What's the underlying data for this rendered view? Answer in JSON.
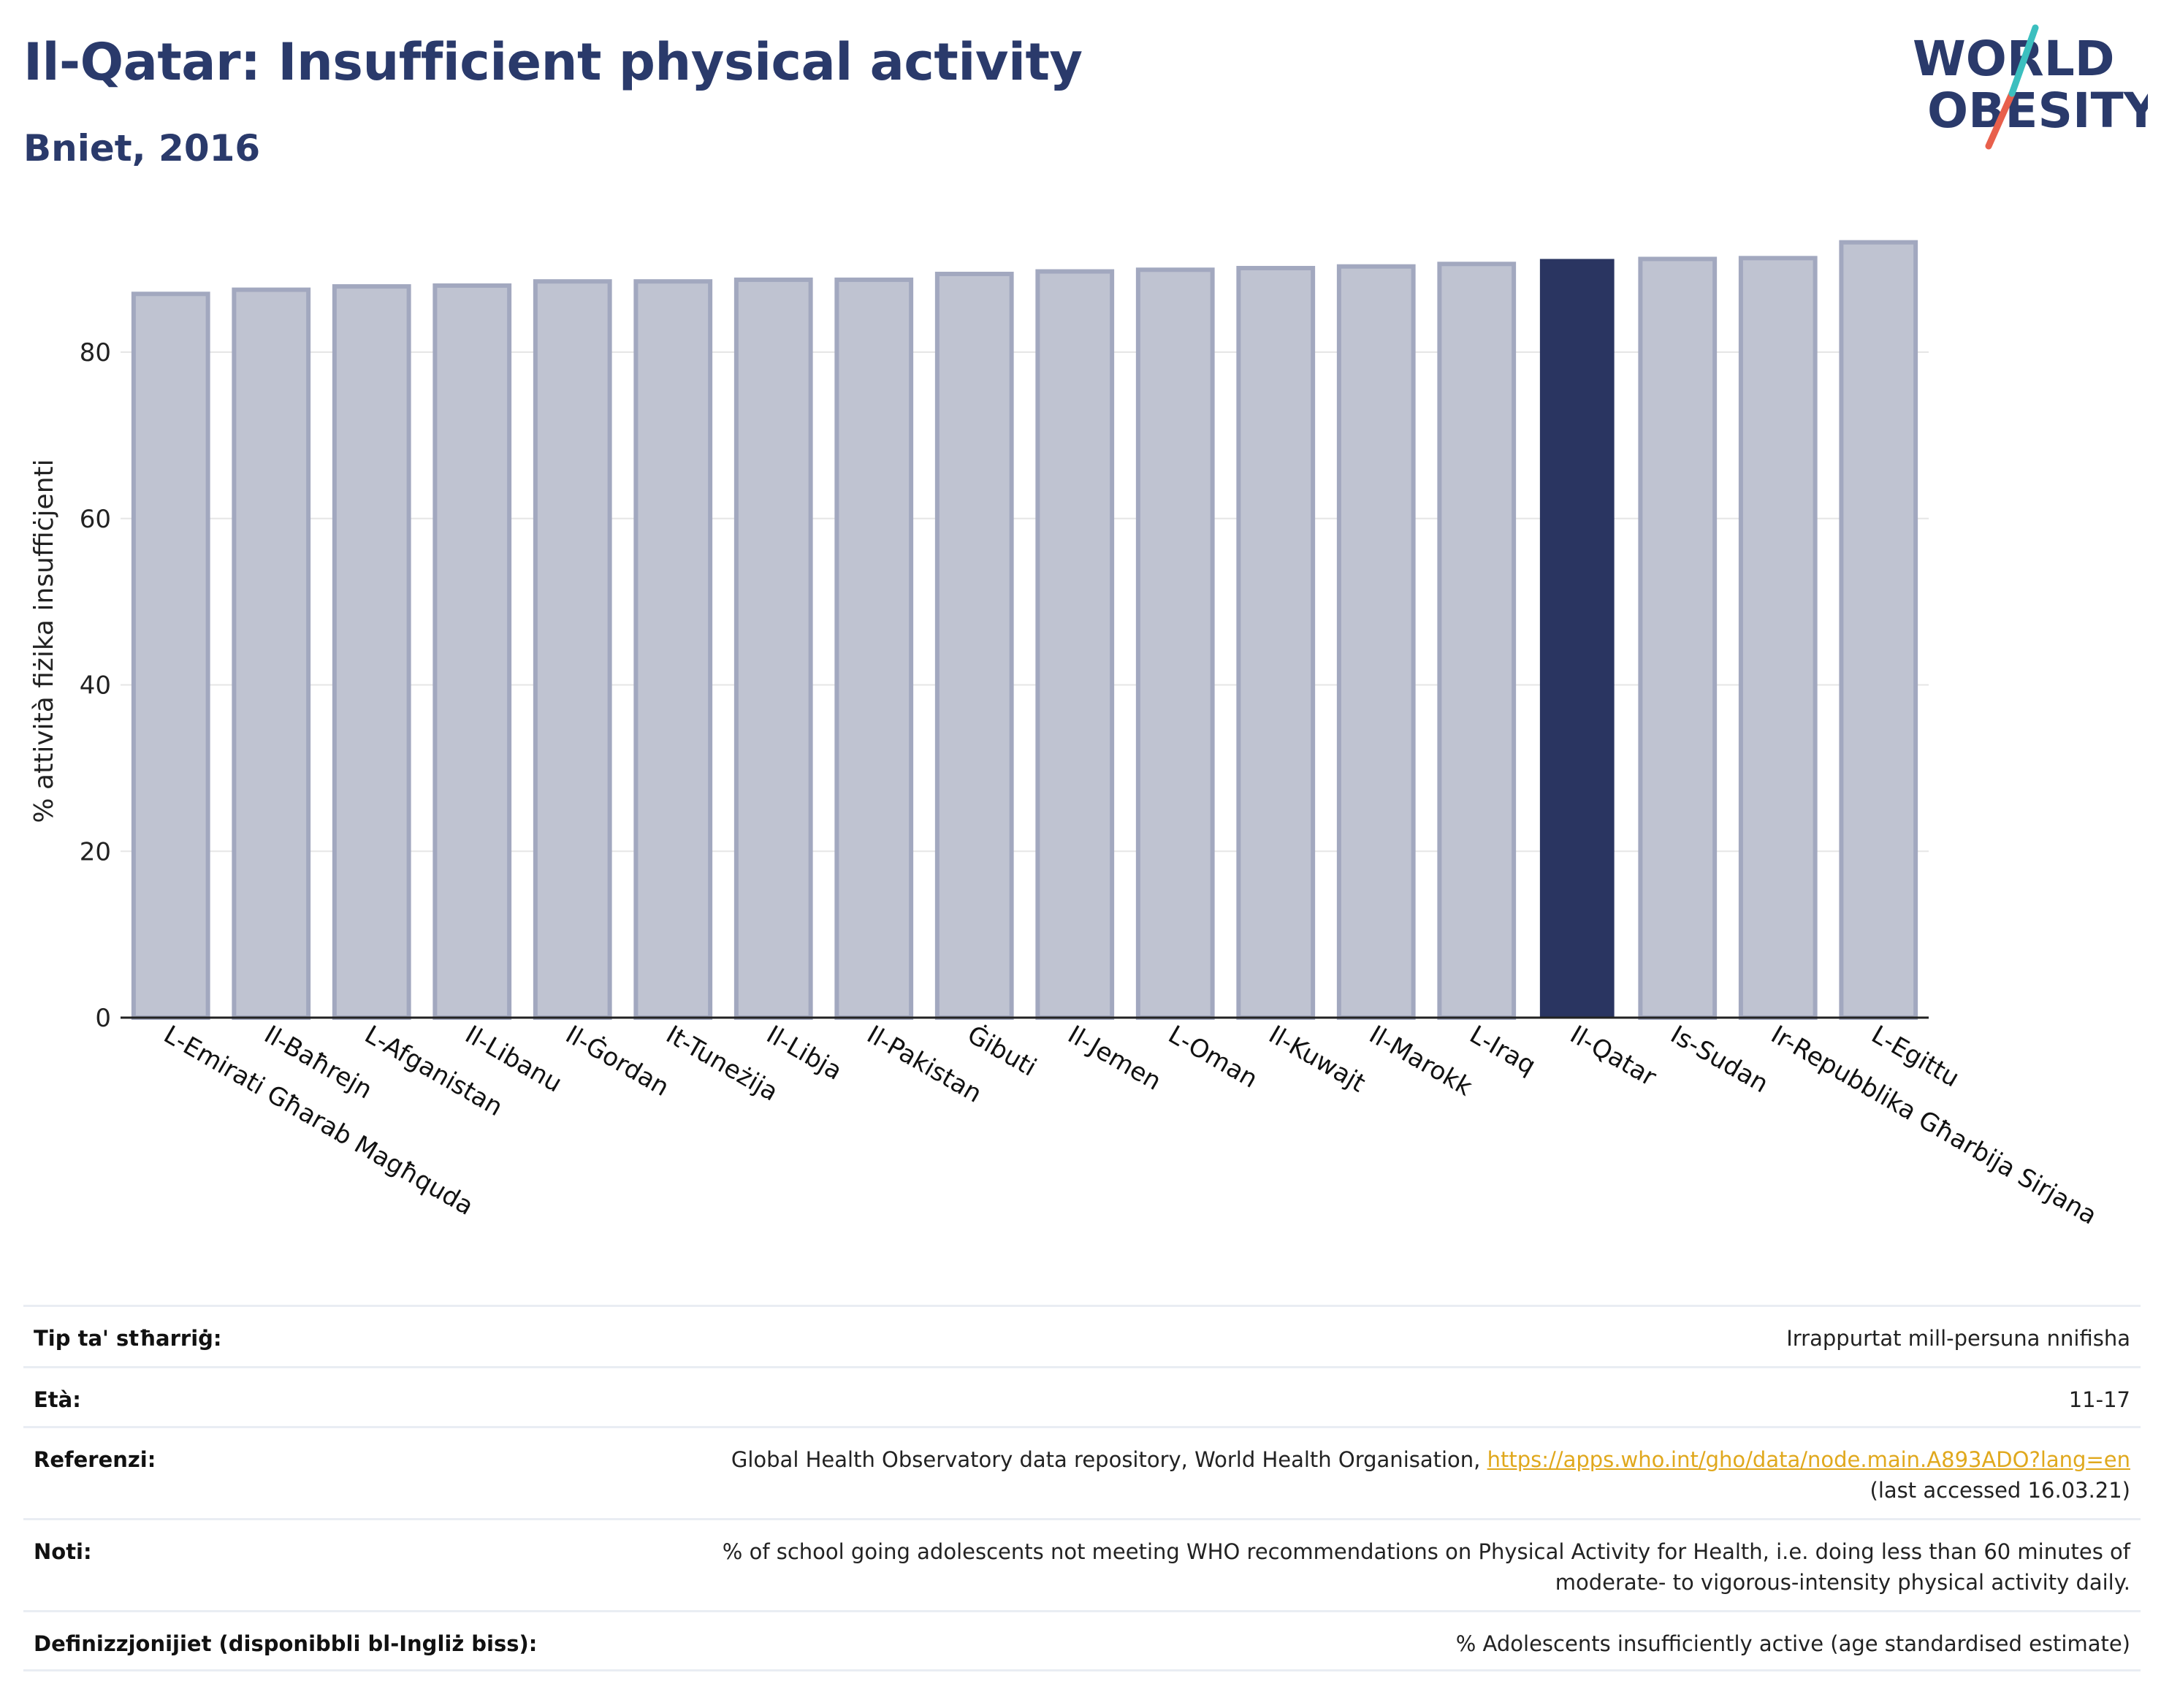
{
  "header": {
    "title": "Il-Qatar: Insufficient physical activity",
    "subtitle": "Bniet, 2016"
  },
  "logo": {
    "line1": "WORLD",
    "line2": "OBESITY",
    "colors": {
      "text": "#2a3a6b",
      "slash_teal": "#3bbfbf",
      "slash_red": "#e8604c"
    }
  },
  "colors": {
    "bar_default_fill": "#bfc3d1",
    "bar_default_stroke": "#a2a8bf",
    "bar_highlight": "#2a3561",
    "grid": "#e6e6e6",
    "axis": "#222222"
  },
  "chart_data": {
    "type": "bar",
    "ylabel": "% attività fiżika insuffiċjenti",
    "ylim": [
      0,
      100
    ],
    "yticks": [
      0,
      20,
      40,
      60,
      80
    ],
    "grid": true,
    "highlight": "Il-Qatar",
    "categories": [
      "L-Emirati Għarab Magħquda",
      "Il-Baħrejn",
      "L-Afganistan",
      "Il-Libanu",
      "Il-Ġordan",
      "It-Tuneżija",
      "Il-Libja",
      "Il-Pakistan",
      "Ġibuti",
      "Il-Jemen",
      "L-Oman",
      "Il-Kuwajt",
      "Il-Marokk",
      "L-Iraq",
      "Il-Qatar",
      "Is-Sudan",
      "Ir-Repubblika Għarbija Sirjana",
      "L-Egittu"
    ],
    "values": [
      87.0,
      87.5,
      87.9,
      88.0,
      88.5,
      88.5,
      88.7,
      88.7,
      89.4,
      89.7,
      89.9,
      90.1,
      90.3,
      90.6,
      91.2,
      91.2,
      91.3,
      93.2
    ]
  },
  "meta": {
    "rows": [
      {
        "label": "Tip ta' stħarriġ:",
        "value": "Irrappurtat mill-persuna nnifisha"
      },
      {
        "label": "Età:",
        "value": "11-17"
      },
      {
        "label": "Referenzi:",
        "value": "Global Health Observatory data repository, World Health Organisation,",
        "link": "https://apps.who.int/gho/data/node.main.A893ADO?lang=en",
        "value_after": "(last accessed 16.03.21)"
      },
      {
        "label": "Noti:",
        "value": "% of school going adolescents not meeting WHO recommendations on Physical Activity for Health, i.e. doing less than 60 minutes of moderate- to vigorous-intensity physical activity daily."
      },
      {
        "label": "Definizzjonijiet (disponibbli bl-Ingliż biss):",
        "value": "% Adolescents insufficiently active (age standardised estimate)"
      }
    ]
  }
}
